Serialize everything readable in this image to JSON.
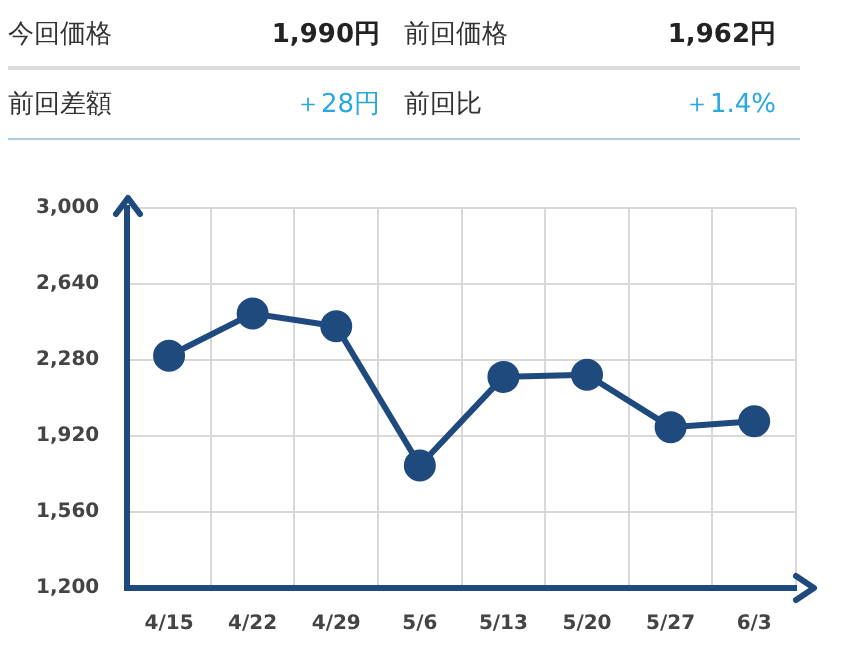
{
  "chart_data": {
    "type": "line",
    "annotations": [
      "今回価格",
      "1,990円",
      "前回価格",
      "1,962円",
      "前回差額",
      "＋28円",
      "前回比",
      "＋1.4%"
    ],
    "categories": [
      "4/15",
      "4/22",
      "4/29",
      "5/6",
      "5/13",
      "5/20",
      "5/27",
      "6/3"
    ],
    "series": [
      {
        "color": "#1f4a7e",
        "values": [
          2300,
          2500,
          2440,
          1780,
          2200,
          2210,
          1962,
          1990
        ]
      }
    ],
    "ylim": [
      1200,
      3000
    ],
    "yticks": [
      {
        "value": 1200,
        "label": "1,200"
      },
      {
        "value": 1560,
        "label": "1,560"
      },
      {
        "value": 1920,
        "label": "1,920"
      },
      {
        "value": 2280,
        "label": "2,280"
      },
      {
        "value": 2640,
        "label": "2,640"
      },
      {
        "value": 3000,
        "label": "3,000"
      }
    ],
    "grid": true,
    "legend": false,
    "marker": "circle",
    "line_style": "solid"
  }
}
